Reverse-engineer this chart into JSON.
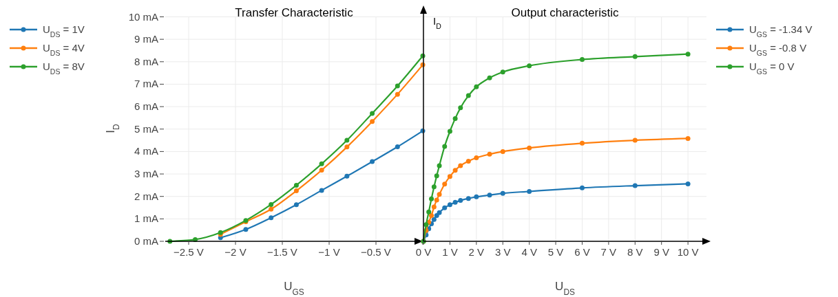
{
  "chart_data": [
    {
      "type": "line",
      "title": "Transfer Characteristic",
      "xlabel": "U$_{GS}$",
      "ylabel": "I$_{D}$",
      "x": [
        -2.7,
        -2.43,
        -2.16,
        -1.89,
        -1.62,
        -1.35,
        -1.08,
        -0.81,
        -0.54,
        -0.27,
        0
      ],
      "series": [
        {
          "name": "U$_{DS}$ = 1V",
          "color": "#1f77b4",
          "values": [
            null,
            null,
            0.16,
            0.53,
            1.05,
            1.63,
            2.27,
            2.9,
            3.55,
            4.21,
            4.92
          ]
        },
        {
          "name": "U$_{DS}$ = 4V",
          "color": "#ff7f0e",
          "values": [
            null,
            null,
            0.31,
            0.87,
            1.43,
            2.25,
            3.17,
            4.2,
            5.34,
            6.55,
            7.86
          ]
        },
        {
          "name": "U$_{DS}$ = 8V",
          "color": "#2ca02c",
          "values": [
            0,
            0.08,
            0.39,
            0.93,
            1.64,
            2.5,
            3.45,
            4.5,
            5.7,
            6.92,
            8.26
          ]
        }
      ],
      "xlim": [
        -2.75,
        0
      ],
      "xticks": [
        {
          "value": -2.5,
          "label": "−2.5 V"
        },
        {
          "value": -2,
          "label": "−2 V"
        },
        {
          "value": -1.5,
          "label": "−1.5 V"
        },
        {
          "value": -1,
          "label": "−1 V"
        },
        {
          "value": -0.5,
          "label": "−0.5 V"
        },
        {
          "value": 0,
          "label": null
        }
      ],
      "ylim": [
        0,
        10
      ],
      "yticks": [
        {
          "value": 0,
          "label": "0 mA"
        },
        {
          "value": 1,
          "label": "1 mA"
        },
        {
          "value": 2,
          "label": "2 mA"
        },
        {
          "value": 3,
          "label": "3 mA"
        },
        {
          "value": 4,
          "label": "4 mA"
        },
        {
          "value": 5,
          "label": "5 mA"
        },
        {
          "value": 6,
          "label": "6 mA"
        },
        {
          "value": 7,
          "label": "7 mA"
        },
        {
          "value": 8,
          "label": "8 mA"
        },
        {
          "value": 9,
          "label": "9 mA"
        },
        {
          "value": 10,
          "label": "10 mA"
        }
      ],
      "grid": true,
      "legend": "top left",
      "marker": "circle",
      "line_style": "solid"
    },
    {
      "type": "line",
      "title": "Output characteristic",
      "xlabel": "U$_{DS}$",
      "ylabel": "I$_{D}$",
      "x": [
        0,
        0.1,
        0.2,
        0.3,
        0.4,
        0.5,
        0.6,
        0.8,
        1,
        1.2,
        1.4,
        1.7,
        2,
        2.5,
        3,
        4,
        6,
        8,
        10
      ],
      "series": [
        {
          "name": "U$_{GS}$ = -1.34 V",
          "color": "#1f77b4",
          "values": [
            0,
            0.28,
            0.56,
            0.78,
            0.97,
            1.15,
            1.28,
            1.49,
            1.63,
            1.74,
            1.82,
            1.91,
            1.98,
            2.06,
            2.14,
            2.22,
            2.38,
            2.48,
            2.56
          ]
        },
        {
          "name": "U$_{GS}$ = -0.8 V",
          "color": "#ff7f0e",
          "values": [
            0,
            0.48,
            0.85,
            1.15,
            1.53,
            1.84,
            2.09,
            2.55,
            2.89,
            3.16,
            3.37,
            3.57,
            3.72,
            3.88,
            4,
            4.16,
            4.37,
            4.5,
            4.58
          ]
        },
        {
          "name": "U$_{GS}$ = 0 V",
          "color": "#2ca02c",
          "values": [
            0,
            0.74,
            1.31,
            1.89,
            2.43,
            2.92,
            3.37,
            4.23,
            4.9,
            5.47,
            5.95,
            6.49,
            6.88,
            7.28,
            7.54,
            7.82,
            8.1,
            8.23,
            8.34
          ]
        }
      ],
      "xlim": [
        0,
        10.7
      ],
      "xticks": [
        {
          "value": 0,
          "label": "0 V"
        },
        {
          "value": 1,
          "label": "1 V"
        },
        {
          "value": 2,
          "label": "2 V"
        },
        {
          "value": 3,
          "label": "3 V"
        },
        {
          "value": 4,
          "label": "4 V"
        },
        {
          "value": 5,
          "label": "5 V"
        },
        {
          "value": 6,
          "label": "6 V"
        },
        {
          "value": 7,
          "label": "7 V"
        },
        {
          "value": 8,
          "label": "8 V"
        },
        {
          "value": 9,
          "label": "9 V"
        },
        {
          "value": 10,
          "label": "10 V"
        }
      ],
      "ylim": [
        0,
        10
      ],
      "yticks": [
        0,
        1,
        2,
        3,
        4,
        5,
        6,
        7,
        8,
        9,
        10
      ],
      "tick_labels": "x",
      "grid": true,
      "legend": "top right",
      "marker": "circle",
      "line_style": "solid"
    }
  ]
}
